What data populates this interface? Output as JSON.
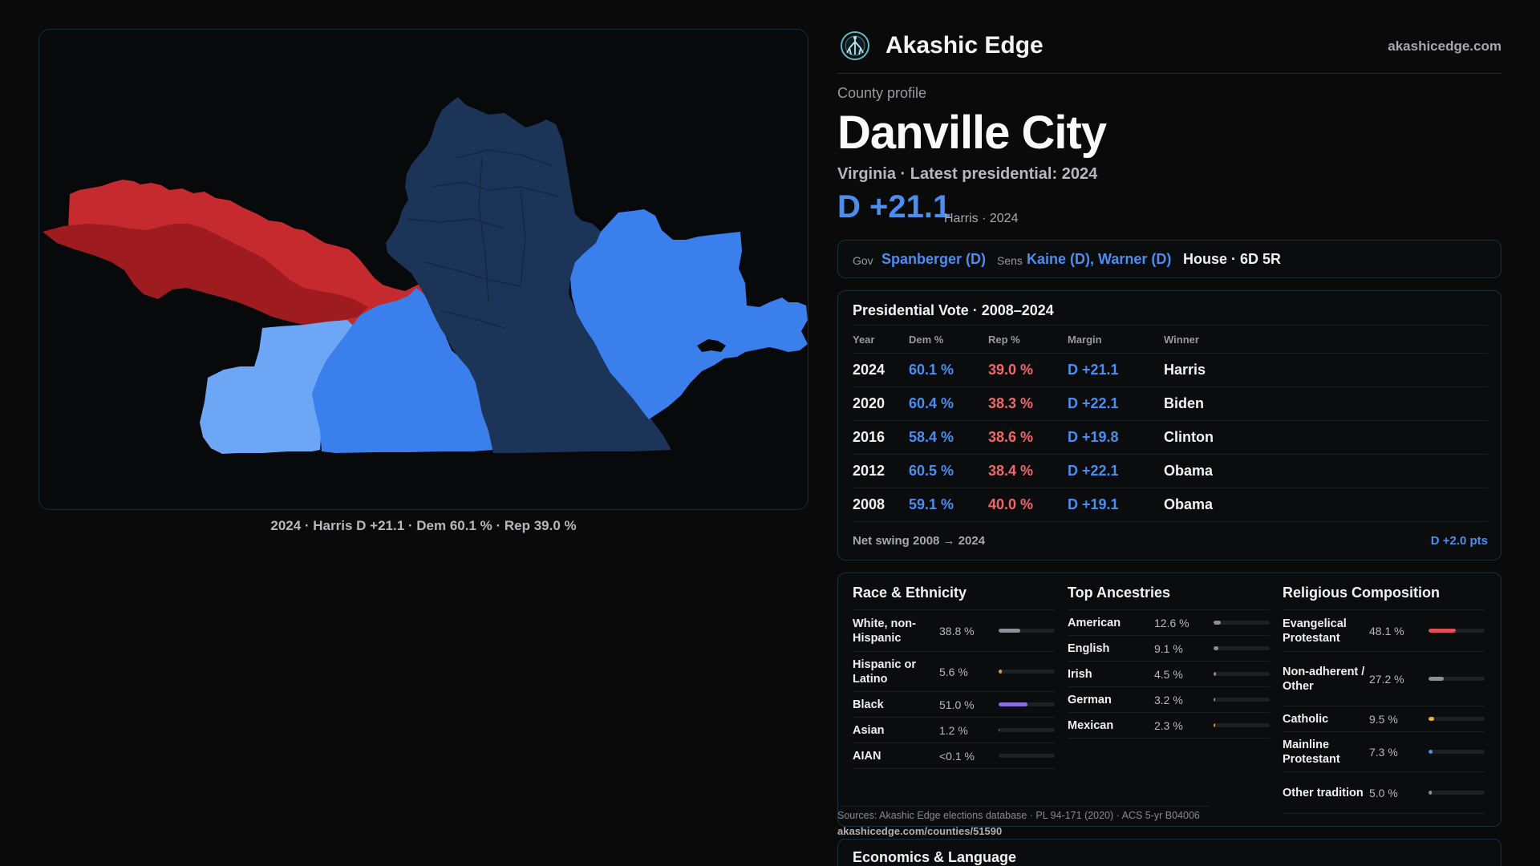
{
  "brand": {
    "name": "Akashic Edge",
    "site": "akashicedge.com",
    "logo_icon": "tree-network-icon"
  },
  "map": {
    "caption": "2024 · Harris D +21.1 · Dem 60.1 % · Rep 39.0 %",
    "colors": {
      "red_light": "#c42a2e",
      "red_dark": "#9e1b1f",
      "blue_light": "#6ea6f6",
      "blue_mid": "#3b7fec",
      "blue_dark": "#1c3458"
    }
  },
  "profile": {
    "eyebrow": "County profile",
    "title": "Danville City",
    "subline": "Virginia · Latest presidential: 2024",
    "margin": "D +21.1",
    "margin_note": "Harris · 2024"
  },
  "officials": {
    "gov_label": "Gov",
    "gov": "Spanberger (D)",
    "sens_label": "Sens",
    "sens": "Kaine (D), Warner (D)",
    "house": "House · 6D 5R"
  },
  "presidential": {
    "title": "Presidential Vote · 2008–2024",
    "headers": {
      "year": "Year",
      "dem": "Dem %",
      "rep": "Rep %",
      "margin": "Margin",
      "winner": "Winner"
    },
    "rows": [
      {
        "year": "2024",
        "dem": "60.1 %",
        "rep": "39.0 %",
        "margin": "D +21.1",
        "winner": "Harris"
      },
      {
        "year": "2020",
        "dem": "60.4 %",
        "rep": "38.3 %",
        "margin": "D +22.1",
        "winner": "Biden"
      },
      {
        "year": "2016",
        "dem": "58.4 %",
        "rep": "38.6 %",
        "margin": "D +19.8",
        "winner": "Clinton"
      },
      {
        "year": "2012",
        "dem": "60.5 %",
        "rep": "38.4 %",
        "margin": "D +22.1",
        "winner": "Obama"
      },
      {
        "year": "2008",
        "dem": "59.1 %",
        "rep": "40.0 %",
        "margin": "D +19.1",
        "winner": "Obama"
      }
    ],
    "swing_label": "Net swing 2008 → 2024",
    "swing_value": "D +2.0 pts"
  },
  "race": {
    "title": "Race & Ethnicity",
    "rows": [
      {
        "label": "White, non-Hispanic",
        "value": "38.8 %",
        "pct": 38.8,
        "color": "#8a8f98"
      },
      {
        "label": "Hispanic or Latino",
        "value": "5.6 %",
        "pct": 5.6,
        "color": "#e69a2a"
      },
      {
        "label": "Black",
        "value": "51.0 %",
        "pct": 51.0,
        "color": "#8b6fe0"
      },
      {
        "label": "Asian",
        "value": "1.2 %",
        "pct": 1.2,
        "color": "#3fbf9a"
      },
      {
        "label": "AIAN",
        "value": "<0.1 %",
        "pct": 0,
        "color": "#8a8f98"
      }
    ]
  },
  "ancestry": {
    "title": "Top Ancestries",
    "rows": [
      {
        "label": "American",
        "value": "12.6 %",
        "pct": 12.6,
        "color": "#8a8f98"
      },
      {
        "label": "English",
        "value": "9.1 %",
        "pct": 9.1,
        "color": "#8a8f98"
      },
      {
        "label": "Irish",
        "value": "4.5 %",
        "pct": 4.5,
        "color": "#8a8f98"
      },
      {
        "label": "German",
        "value": "3.2 %",
        "pct": 3.2,
        "color": "#8a8f98"
      },
      {
        "label": "Mexican",
        "value": "2.3 %",
        "pct": 2.3,
        "color": "#e69a2a"
      }
    ]
  },
  "religion": {
    "title": "Religious Composition",
    "rows": [
      {
        "label": "Evangelical Protestant",
        "value": "48.1 %",
        "pct": 48.1,
        "color": "#e0505a"
      },
      {
        "label": "Non-adherent / Other",
        "value": "27.2 %",
        "pct": 27.2,
        "color": "#8a8f98"
      },
      {
        "label": "Catholic",
        "value": "9.5 %",
        "pct": 9.5,
        "color": "#e6b030"
      },
      {
        "label": "Mainline Protestant",
        "value": "7.3 %",
        "pct": 7.3,
        "color": "#4a8ef0"
      },
      {
        "label": "Other tradition",
        "value": "5.0 %",
        "pct": 5.0,
        "color": "#8a8f98"
      }
    ]
  },
  "sources": {
    "text": "Sources: Akashic Edge elections database · PL 94-171 (2020) · ACS 5-yr B04006",
    "url": "akashicedge.com/counties/51590"
  },
  "economics": {
    "title": "Economics & Language"
  }
}
